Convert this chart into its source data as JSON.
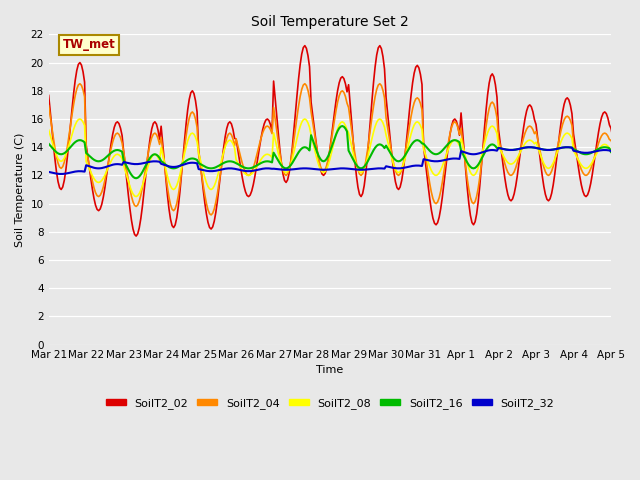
{
  "title": "Soil Temperature Set 2",
  "xlabel": "Time",
  "ylabel": "Soil Temperature (C)",
  "ylim": [
    0,
    22
  ],
  "yticks": [
    0,
    2,
    4,
    6,
    8,
    10,
    12,
    14,
    16,
    18,
    20,
    22
  ],
  "x_labels": [
    "Mar 21",
    "Mar 22",
    "Mar 23",
    "Mar 24",
    "Mar 25",
    "Mar 26",
    "Mar 27",
    "Mar 28",
    "Mar 29",
    "Mar 30",
    "Mar 31",
    "Apr 1",
    "Apr 2",
    "Apr 3",
    "Apr 4",
    "Apr 5"
  ],
  "annotation_text": "TW_met",
  "annotation_color": "#aa0000",
  "annotation_bg": "#ffffcc",
  "annotation_border": "#aa8800",
  "bg_color": "#e8e8e8",
  "series_order": [
    "SoilT2_02",
    "SoilT2_04",
    "SoilT2_08",
    "SoilT2_16",
    "SoilT2_32"
  ],
  "series": {
    "SoilT2_02": {
      "color": "#dd0000",
      "lw": 1.2
    },
    "SoilT2_04": {
      "color": "#ff8800",
      "lw": 1.2
    },
    "SoilT2_08": {
      "color": "#ffff00",
      "lw": 1.2
    },
    "SoilT2_16": {
      "color": "#00bb00",
      "lw": 1.5
    },
    "SoilT2_32": {
      "color": "#0000cc",
      "lw": 1.5
    }
  },
  "n_days": 15,
  "pts_per_day": 24,
  "day_peaks_02": [
    20.0,
    15.8,
    15.8,
    18.0,
    15.8,
    16.0,
    21.2,
    19.0,
    21.2,
    19.8,
    16.0,
    19.2,
    17.0,
    17.5,
    16.5,
    16.5
  ],
  "day_troughs_02": [
    11.0,
    9.5,
    7.7,
    8.3,
    8.2,
    10.5,
    11.5,
    12.0,
    10.5,
    11.0,
    8.5,
    8.5,
    10.2,
    10.2,
    10.5,
    12.0
  ],
  "day_peaks_04": [
    18.5,
    15.0,
    15.0,
    16.5,
    15.0,
    15.5,
    18.5,
    18.0,
    18.5,
    17.5,
    15.8,
    17.2,
    15.5,
    16.2,
    15.0,
    15.0
  ],
  "day_troughs_04": [
    12.5,
    10.5,
    9.8,
    9.5,
    9.2,
    12.0,
    12.0,
    12.3,
    12.0,
    12.0,
    10.0,
    10.0,
    12.0,
    12.0,
    12.0,
    13.0
  ],
  "day_peaks_08": [
    16.0,
    13.5,
    13.5,
    15.0,
    14.5,
    13.5,
    16.0,
    15.8,
    16.0,
    15.8,
    14.5,
    15.5,
    14.5,
    15.0,
    14.2,
    14.0
  ],
  "day_troughs_08": [
    13.0,
    11.5,
    10.5,
    11.0,
    11.0,
    12.0,
    12.2,
    12.2,
    12.2,
    12.2,
    12.0,
    12.0,
    12.8,
    12.5,
    12.5,
    13.0
  ],
  "day_peaks_16": [
    14.5,
    13.8,
    13.5,
    13.2,
    13.0,
    13.0,
    14.0,
    15.5,
    14.2,
    14.5,
    14.5,
    14.2,
    14.0,
    14.0,
    14.0,
    13.8
  ],
  "day_troughs_16": [
    13.5,
    13.0,
    11.8,
    12.5,
    12.5,
    12.5,
    12.5,
    13.0,
    12.5,
    13.0,
    13.5,
    12.5,
    13.8,
    13.8,
    13.5,
    13.2
  ],
  "day_peaks_32": [
    12.3,
    12.8,
    13.0,
    12.9,
    12.5,
    12.5,
    12.5,
    12.5,
    12.5,
    12.7,
    13.2,
    13.8,
    14.0,
    14.0,
    13.8,
    13.8
  ],
  "day_troughs_32": [
    12.1,
    12.5,
    12.8,
    12.6,
    12.3,
    12.3,
    12.4,
    12.4,
    12.4,
    12.5,
    13.0,
    13.5,
    13.8,
    13.8,
    13.6,
    13.5
  ]
}
